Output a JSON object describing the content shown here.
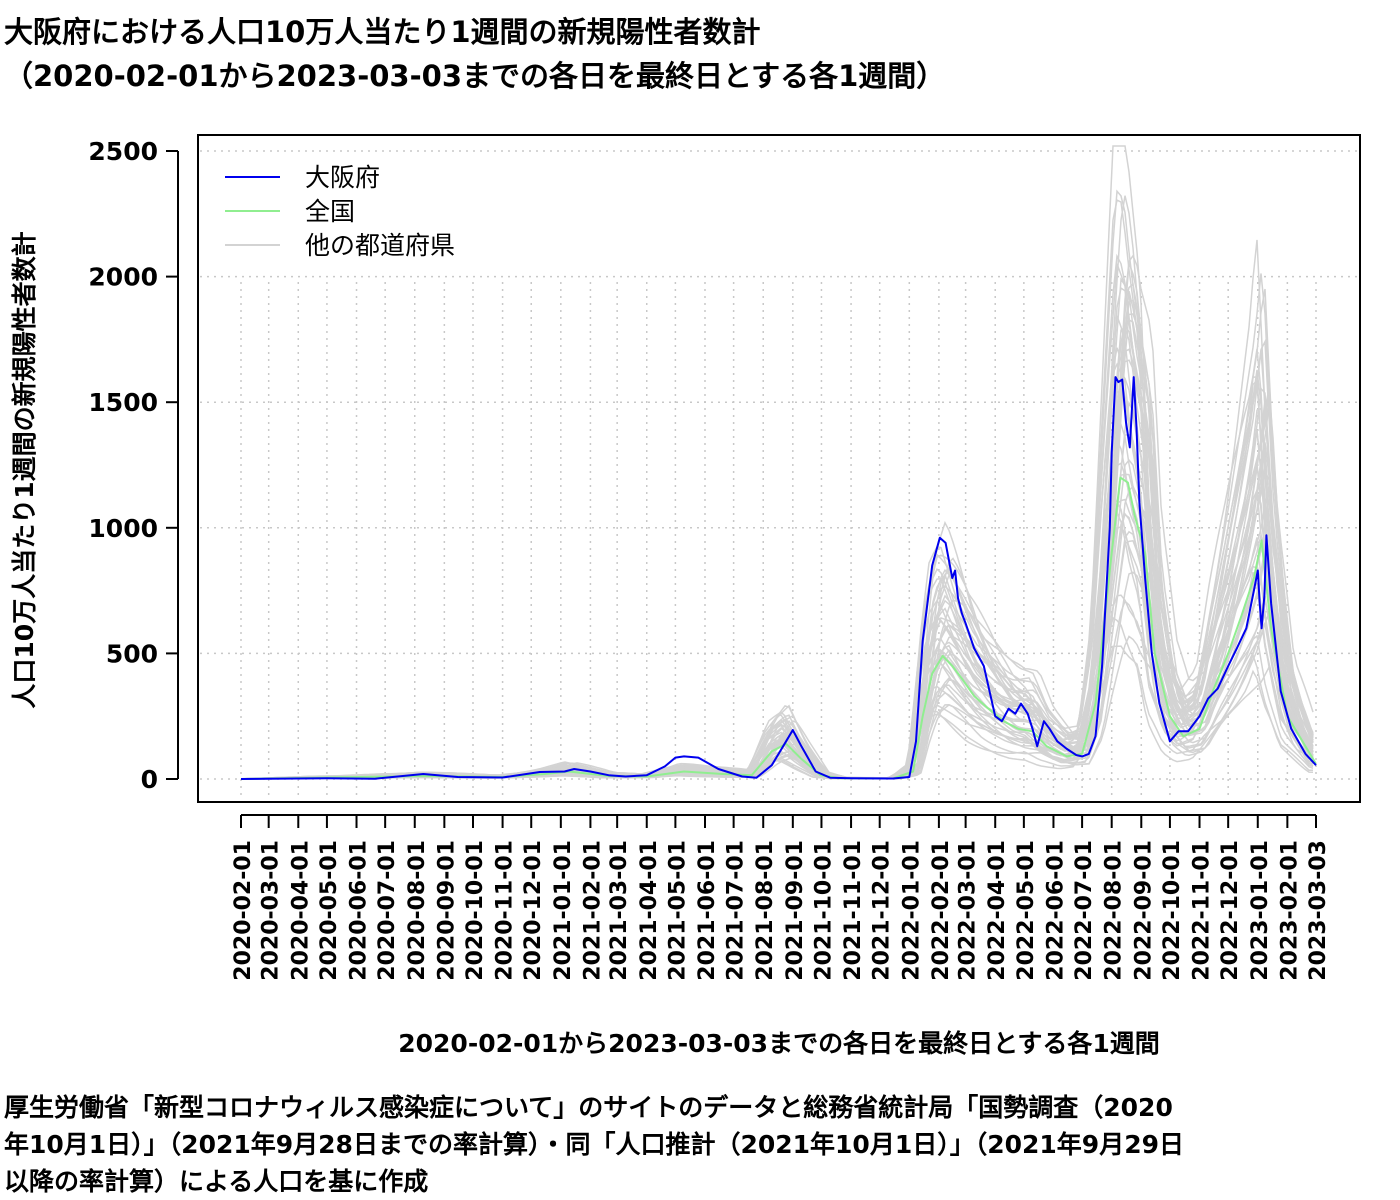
{
  "title": {
    "line1": "大阪府における人口10万人当たり1週間の新規陽性者数計",
    "line2": "（2020-02-01から2023-03-03までの各日を最終日とする各1週間）"
  },
  "note": {
    "line1": "厚生労働省「新型コロナウィルス感染症について」のサイトのデータと総務省統計局「国勢調査（2020",
    "line2": "年10月1日）」（2021年9月28日までの率計算）・同「人口推計（2021年10月1日）」（2021年9月29日",
    "line3": "以降の率計算）による人口を基に作成"
  },
  "chart_data": {
    "type": "line",
    "xlabel": "2020-02-01から2023-03-03までの各日を最終日とする各1週間",
    "ylabel": "人口10万人当たり1週間の新規陽性者数計",
    "ylim": [
      0,
      2500
    ],
    "yticks": [
      0,
      500,
      1000,
      1500,
      2000,
      2500
    ],
    "xticks": [
      "2020-02-01",
      "2020-03-01",
      "2020-04-01",
      "2020-05-01",
      "2020-06-01",
      "2020-07-01",
      "2020-08-01",
      "2020-09-01",
      "2020-10-01",
      "2020-11-01",
      "2020-12-01",
      "2021-01-01",
      "2021-02-01",
      "2021-03-01",
      "2021-04-01",
      "2021-05-01",
      "2021-06-01",
      "2021-07-01",
      "2021-08-01",
      "2021-09-01",
      "2021-10-01",
      "2021-11-01",
      "2021-12-01",
      "2022-01-01",
      "2022-02-01",
      "2022-03-01",
      "2022-04-01",
      "2022-05-01",
      "2022-06-01",
      "2022-07-01",
      "2022-08-01",
      "2022-09-01",
      "2022-10-01",
      "2022-11-01",
      "2022-12-01",
      "2023-01-01",
      "2023-02-01",
      "2023-03-03"
    ],
    "grid": true,
    "legend_position": "top-left",
    "series": [
      {
        "name": "大阪府",
        "color": "#0000ee",
        "x": [
          "2020-02-01",
          "2020-05-01",
          "2020-06-20",
          "2020-08-10",
          "2020-09-15",
          "2020-11-01",
          "2020-12-10",
          "2021-01-05",
          "2021-01-15",
          "2021-02-01",
          "2021-02-20",
          "2021-03-10",
          "2021-04-01",
          "2021-04-20",
          "2021-05-01",
          "2021-05-10",
          "2021-05-25",
          "2021-06-15",
          "2021-07-10",
          "2021-07-25",
          "2021-08-10",
          "2021-08-25",
          "2021-09-01",
          "2021-09-10",
          "2021-09-25",
          "2021-10-10",
          "2021-11-01",
          "2021-12-15",
          "2022-01-01",
          "2022-01-08",
          "2022-01-15",
          "2022-01-25",
          "2022-02-02",
          "2022-02-08",
          "2022-02-15",
          "2022-02-18",
          "2022-02-21",
          "2022-02-25",
          "2022-03-01",
          "2022-03-10",
          "2022-03-20",
          "2022-04-01",
          "2022-04-08",
          "2022-04-15",
          "2022-04-22",
          "2022-04-28",
          "2022-05-05",
          "2022-05-10",
          "2022-05-15",
          "2022-05-22",
          "2022-05-28",
          "2022-06-05",
          "2022-06-15",
          "2022-06-25",
          "2022-07-01",
          "2022-07-08",
          "2022-07-15",
          "2022-07-22",
          "2022-07-30",
          "2022-08-01",
          "2022-08-05",
          "2022-08-08",
          "2022-08-12",
          "2022-08-16",
          "2022-08-20",
          "2022-08-24",
          "2022-08-27",
          "2022-08-30",
          "2022-09-05",
          "2022-09-12",
          "2022-09-20",
          "2022-10-01",
          "2022-10-10",
          "2022-10-20",
          "2022-11-01",
          "2022-11-10",
          "2022-11-20",
          "2022-12-01",
          "2022-12-10",
          "2022-12-20",
          "2022-12-28",
          "2023-01-01",
          "2023-01-03",
          "2023-01-05",
          "2023-01-08",
          "2023-01-10",
          "2023-01-15",
          "2023-01-25",
          "2023-02-05",
          "2023-02-20",
          "2023-03-03"
        ],
        "values": [
          0,
          3,
          1,
          20,
          8,
          6,
          28,
          30,
          40,
          30,
          15,
          10,
          15,
          50,
          85,
          90,
          85,
          40,
          10,
          5,
          55,
          150,
          195,
          130,
          30,
          5,
          3,
          2,
          8,
          150,
          550,
          850,
          960,
          940,
          800,
          830,
          720,
          660,
          620,
          520,
          450,
          250,
          230,
          280,
          260,
          300,
          260,
          200,
          130,
          230,
          200,
          150,
          120,
          95,
          90,
          100,
          170,
          450,
          1000,
          1300,
          1600,
          1580,
          1590,
          1420,
          1320,
          1600,
          1400,
          1100,
          800,
          500,
          300,
          150,
          190,
          190,
          250,
          320,
          360,
          450,
          520,
          600,
          750,
          830,
          700,
          600,
          730,
          970,
          700,
          350,
          200,
          100,
          55
        ]
      },
      {
        "name": "全国",
        "color": "#90ee90",
        "x": [
          "2020-02-01",
          "2020-08-10",
          "2020-11-01",
          "2020-12-15",
          "2021-01-10",
          "2021-02-20",
          "2021-04-01",
          "2021-05-10",
          "2021-06-20",
          "2021-07-20",
          "2021-08-10",
          "2021-08-25",
          "2021-09-10",
          "2021-09-30",
          "2021-10-20",
          "2021-12-15",
          "2022-01-05",
          "2022-01-15",
          "2022-01-25",
          "2022-02-05",
          "2022-02-15",
          "2022-02-25",
          "2022-03-10",
          "2022-03-25",
          "2022-04-10",
          "2022-04-25",
          "2022-05-10",
          "2022-05-25",
          "2022-06-15",
          "2022-07-01",
          "2022-07-15",
          "2022-08-01",
          "2022-08-10",
          "2022-08-18",
          "2022-08-25",
          "2022-09-05",
          "2022-09-15",
          "2022-10-01",
          "2022-10-15",
          "2022-11-01",
          "2022-11-15",
          "2022-12-01",
          "2022-12-15",
          "2022-12-28",
          "2023-01-05",
          "2023-01-15",
          "2023-02-01",
          "2023-03-03"
        ],
        "values": [
          0,
          12,
          8,
          20,
          30,
          12,
          10,
          30,
          20,
          15,
          110,
          140,
          80,
          15,
          3,
          2,
          30,
          250,
          420,
          490,
          450,
          400,
          330,
          280,
          230,
          200,
          190,
          130,
          90,
          100,
          300,
          900,
          1200,
          1180,
          1050,
          900,
          500,
          250,
          170,
          200,
          350,
          500,
          650,
          800,
          950,
          600,
          250,
          60
        ]
      }
    ],
    "other_prefectures": {
      "name": "他の都道府県",
      "color": "#d3d3d3"
    }
  }
}
